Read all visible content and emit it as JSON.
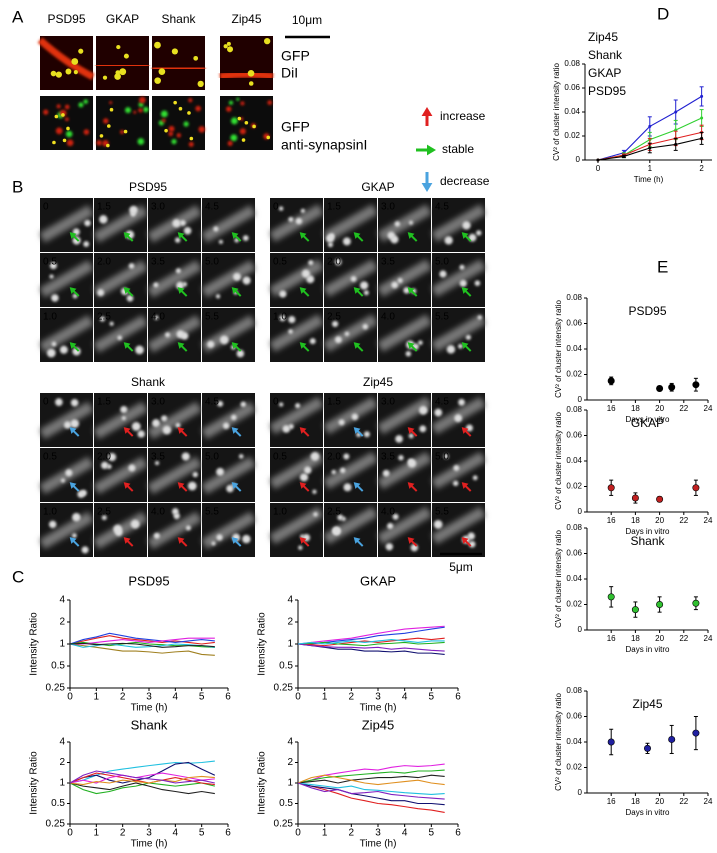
{
  "labels": [
    "A",
    "B",
    "C",
    "D",
    "E"
  ],
  "panel_a": {
    "column_labels": [
      "PSD95",
      "GKAP",
      "Shank",
      "Zip45"
    ],
    "scale_bar": "10μm",
    "row1_labels": [
      "GFP",
      "DiI"
    ],
    "row2_labels": [
      "GFP",
      "anti-synapsinI"
    ],
    "legend": [
      "increase",
      "stable",
      "decrease"
    ]
  },
  "panel_b": {
    "titles": [
      "PSD95",
      "GKAP",
      "Shank",
      "Zip45"
    ],
    "times": [
      "0",
      "1.5",
      "3.0",
      "4.5",
      "0.5",
      "2.0",
      "3.5",
      "5.0",
      "1.0",
      "2.5",
      "4.0",
      "5.5"
    ],
    "scale_bar": "5μm"
  },
  "chart_data": [
    {
      "type": "line",
      "title": "PSD95",
      "xlabel": "Time (h)",
      "ylabel": "Intensity Ratio",
      "log_y": true,
      "x": [
        0,
        0.5,
        1,
        1.5,
        2,
        2.5,
        3,
        3.5,
        4,
        4.5,
        5,
        5.5
      ],
      "xlim": [
        0,
        6
      ],
      "xticks": [
        0,
        1,
        2,
        3,
        4,
        5,
        6
      ],
      "ylim": [
        0.25,
        4
      ],
      "yticks": [
        0.25,
        0.5,
        1,
        2,
        4
      ],
      "series": [
        {
          "color": "#e02020",
          "values": [
            1,
            1.1,
            1.2,
            1.3,
            1.2,
            1.15,
            1.1,
            1.05,
            1.1,
            1.05,
            1.0,
            1.05
          ]
        },
        {
          "color": "#2040e0",
          "values": [
            1,
            1.15,
            1.25,
            1.4,
            1.3,
            1.2,
            1.15,
            1.1,
            1.05,
            1.1,
            1.15,
            1.1
          ]
        },
        {
          "color": "#a08020",
          "values": [
            1,
            0.95,
            0.9,
            0.85,
            0.8,
            0.8,
            0.78,
            0.75,
            0.78,
            0.8,
            0.72,
            0.7
          ]
        },
        {
          "color": "#20b020",
          "values": [
            1,
            1.05,
            1.0,
            0.95,
            1.0,
            1.05,
            1.0,
            0.98,
            0.95,
            0.95,
            0.92,
            0.9
          ]
        },
        {
          "color": "#e020e0",
          "values": [
            1,
            1.0,
            1.05,
            1.1,
            1.15,
            1.1,
            1.05,
            1.1,
            1.15,
            1.2,
            1.2,
            1.2
          ]
        },
        {
          "color": "#20c0e0",
          "values": [
            1,
            0.9,
            0.95,
            1.0,
            0.95,
            0.9,
            0.92,
            0.95,
            1.0,
            0.98,
            0.95,
            0.9
          ]
        },
        {
          "color": "#202020",
          "values": [
            1,
            1.02,
            0.98,
            1.0,
            1.02,
            1.0,
            0.95,
            0.9,
            0.92,
            0.95,
            0.95,
            0.92
          ]
        }
      ]
    },
    {
      "type": "line",
      "title": "GKAP",
      "xlabel": "Time (h)",
      "ylabel": "Intensity Ratio",
      "log_y": true,
      "x": [
        0,
        0.5,
        1,
        1.5,
        2,
        2.5,
        3,
        3.5,
        4,
        4.5,
        5,
        5.5
      ],
      "xlim": [
        0,
        6
      ],
      "xticks": [
        0,
        1,
        2,
        3,
        4,
        5,
        6
      ],
      "ylim": [
        0.25,
        4
      ],
      "yticks": [
        0.25,
        0.5,
        1,
        2,
        4
      ],
      "series": [
        {
          "color": "#e020e0",
          "values": [
            1,
            1.05,
            1.1,
            1.15,
            1.2,
            1.3,
            1.4,
            1.5,
            1.6,
            1.65,
            1.7,
            1.75
          ]
        },
        {
          "color": "#2040e0",
          "values": [
            1,
            1.0,
            1.05,
            1.1,
            1.15,
            1.2,
            1.3,
            1.35,
            1.4,
            1.5,
            1.6,
            1.7
          ]
        },
        {
          "color": "#101070",
          "values": [
            1,
            0.95,
            0.9,
            0.85,
            0.85,
            0.8,
            0.8,
            0.78,
            0.8,
            0.75,
            0.75,
            0.72
          ]
        },
        {
          "color": "#e02020",
          "values": [
            1,
            0.98,
            0.95,
            1.0,
            1.05,
            1.1,
            1.05,
            1.1,
            1.15,
            1.2,
            1.15,
            1.2
          ]
        },
        {
          "color": "#20b020",
          "values": [
            1,
            1.02,
            1.05,
            1.0,
            0.98,
            0.95,
            1.0,
            1.02,
            1.05,
            1.0,
            1.02,
            1.05
          ]
        },
        {
          "color": "#8020c0",
          "values": [
            1,
            0.95,
            0.92,
            0.9,
            0.9,
            0.88,
            0.9,
            0.85,
            0.88,
            0.85,
            0.82,
            0.8
          ]
        },
        {
          "color": "#20c0e0",
          "values": [
            1,
            1.05,
            1.0,
            1.05,
            1.1,
            1.05,
            1.1,
            1.15,
            1.1,
            1.05,
            1.1,
            1.1
          ]
        }
      ]
    },
    {
      "type": "line",
      "title": "Shank",
      "xlabel": "Time (h)",
      "ylabel": "Intensity Ratio",
      "log_y": true,
      "x": [
        0,
        0.5,
        1,
        1.5,
        2,
        2.5,
        3,
        3.5,
        4,
        4.5,
        5,
        5.5
      ],
      "xlim": [
        0,
        6
      ],
      "xticks": [
        0,
        1,
        2,
        3,
        4,
        5,
        6
      ],
      "ylim": [
        0.25,
        4
      ],
      "yticks": [
        0.25,
        0.5,
        1,
        2,
        4
      ],
      "series": [
        {
          "color": "#20c0e0",
          "values": [
            1,
            1.1,
            1.3,
            1.5,
            1.6,
            1.7,
            1.8,
            1.9,
            2.0,
            1.95,
            2.0,
            2.1
          ]
        },
        {
          "color": "#101070",
          "values": [
            1,
            1.2,
            1.3,
            1.1,
            1.0,
            1.1,
            1.2,
            1.5,
            1.9,
            2.0,
            1.6,
            1.3
          ]
        },
        {
          "color": "#20b020",
          "values": [
            1,
            0.8,
            0.7,
            0.75,
            0.85,
            0.9,
            1.0,
            0.95,
            0.9,
            0.95,
            1.0,
            0.9
          ]
        },
        {
          "color": "#e02020",
          "values": [
            1,
            1.2,
            1.4,
            1.3,
            1.2,
            1.1,
            1.0,
            1.1,
            1.2,
            1.1,
            1.0,
            0.95
          ]
        },
        {
          "color": "#202020",
          "values": [
            1,
            0.9,
            0.85,
            0.8,
            0.9,
            1.0,
            0.9,
            0.8,
            0.75,
            0.7,
            0.75,
            0.7
          ]
        },
        {
          "color": "#e020e0",
          "values": [
            1,
            1.1,
            1.0,
            1.2,
            1.3,
            1.2,
            1.3,
            1.4,
            1.3,
            1.2,
            1.1,
            1.15
          ]
        },
        {
          "color": "#e09020",
          "values": [
            1,
            0.95,
            1.05,
            1.0,
            1.1,
            1.05,
            1.0,
            1.1,
            1.05,
            1.2,
            1.25,
            1.2
          ]
        },
        {
          "color": "#8020c0",
          "values": [
            1,
            1.3,
            1.5,
            1.4,
            1.3,
            1.2,
            1.15,
            1.1,
            1.0,
            1.05,
            1.1,
            1.0
          ]
        }
      ]
    },
    {
      "type": "line",
      "title": "Zip45",
      "xlabel": "Time (h)",
      "ylabel": "Intensity Ratio",
      "log_y": true,
      "x": [
        0,
        0.5,
        1,
        1.5,
        2,
        2.5,
        3,
        3.5,
        4,
        4.5,
        5,
        5.5
      ],
      "xlim": [
        0,
        6
      ],
      "xticks": [
        0,
        1,
        2,
        3,
        4,
        5,
        6
      ],
      "ylim": [
        0.25,
        4
      ],
      "yticks": [
        0.25,
        0.5,
        1,
        2,
        4
      ],
      "series": [
        {
          "color": "#e020e0",
          "values": [
            1,
            1.1,
            1.3,
            1.4,
            1.5,
            1.6,
            1.55,
            1.7,
            1.8,
            1.75,
            1.8,
            1.9
          ]
        },
        {
          "color": "#e02020",
          "values": [
            1,
            0.9,
            0.8,
            0.7,
            0.6,
            0.55,
            0.5,
            0.48,
            0.45,
            0.42,
            0.4,
            0.37
          ]
        },
        {
          "color": "#101070",
          "values": [
            1,
            0.9,
            0.85,
            0.8,
            0.7,
            0.65,
            0.6,
            0.55,
            0.55,
            0.5,
            0.5,
            0.48
          ]
        },
        {
          "color": "#20b020",
          "values": [
            1,
            1.1,
            1.2,
            1.25,
            1.3,
            1.35,
            1.4,
            1.45,
            1.4,
            1.5,
            1.5,
            1.55
          ]
        },
        {
          "color": "#20c0e0",
          "values": [
            1,
            0.95,
            0.9,
            0.85,
            0.9,
            0.8,
            0.78,
            0.75,
            0.72,
            0.7,
            0.68,
            0.7
          ]
        },
        {
          "color": "#202020",
          "values": [
            1,
            1.05,
            1.1,
            1.0,
            1.1,
            1.15,
            1.2,
            1.2,
            1.25,
            1.2,
            1.3,
            1.25
          ]
        },
        {
          "color": "#e09020",
          "values": [
            1,
            1.2,
            1.3,
            1.2,
            1.1,
            1.0,
            0.95,
            1.0,
            1.05,
            1.1,
            1.0,
            0.95
          ]
        },
        {
          "color": "#8020c0",
          "values": [
            1,
            0.85,
            0.75,
            0.8,
            0.7,
            0.72,
            0.75,
            0.68,
            0.65,
            0.62,
            0.6,
            0.58
          ]
        }
      ]
    },
    {
      "type": "line",
      "xlabel": "Time (h)",
      "ylabel": "CV² of cluster intensity ratio",
      "x": [
        0,
        0.5,
        1,
        1.5,
        2
      ],
      "xlim": [
        -0.25,
        2.2
      ],
      "xticks": [
        0,
        1,
        2
      ],
      "ylim": [
        0,
        0.08
      ],
      "yticks": [
        0,
        0.02,
        0.04,
        0.06,
        0.08
      ],
      "series": [
        {
          "name": "Zip45",
          "color": "#2020d0",
          "values": [
            0,
            0.006,
            0.028,
            0.04,
            0.053
          ],
          "errors": [
            0,
            0.002,
            0.008,
            0.01,
            0.008
          ]
        },
        {
          "name": "Shank",
          "color": "#30d030",
          "values": [
            0,
            0.004,
            0.017,
            0.025,
            0.035
          ],
          "errors": [
            0,
            0.002,
            0.006,
            0.008,
            0.007
          ]
        },
        {
          "name": "GKAP",
          "color": "#e02020",
          "values": [
            0,
            0.004,
            0.013,
            0.018,
            0.023
          ],
          "errors": [
            0,
            0.001,
            0.005,
            0.006,
            0.006
          ]
        },
        {
          "name": "PSD95",
          "color": "#000000",
          "values": [
            0,
            0.003,
            0.01,
            0.013,
            0.018
          ],
          "errors": [
            0,
            0.001,
            0.004,
            0.005,
            0.005
          ]
        }
      ]
    },
    {
      "type": "scatter",
      "title": "PSD95",
      "xlabel": "Days in vitro",
      "ylabel": "CV² of cluster intensity ratio",
      "x": [
        16,
        20,
        21,
        23
      ],
      "values": [
        0.015,
        0.009,
        0.01,
        0.012
      ],
      "errors": [
        0.003,
        0.002,
        0.003,
        0.005
      ],
      "color": "#000000",
      "xlim": [
        14,
        24
      ],
      "xticks": [
        16,
        18,
        20,
        22,
        24
      ],
      "ylim": [
        0,
        0.08
      ],
      "yticks": [
        0,
        0.02,
        0.04,
        0.06,
        0.08
      ]
    },
    {
      "type": "scatter",
      "title": "GKAP",
      "xlabel": "Days in vitro",
      "ylabel": "CV² of cluster intensity ratio",
      "x": [
        16,
        18,
        20,
        23
      ],
      "values": [
        0.019,
        0.011,
        0.01,
        0.019
      ],
      "errors": [
        0.006,
        0.004,
        0.002,
        0.006
      ],
      "color": "#c02020",
      "xlim": [
        14,
        24
      ],
      "xticks": [
        16,
        18,
        20,
        22,
        24
      ],
      "ylim": [
        0,
        0.08
      ],
      "yticks": [
        0,
        0.02,
        0.04,
        0.06,
        0.08
      ]
    },
    {
      "type": "scatter",
      "title": "Shank",
      "xlabel": "Days in vitro",
      "ylabel": "CV² of cluster intensity ratio",
      "x": [
        16,
        18,
        20,
        23
      ],
      "values": [
        0.026,
        0.016,
        0.02,
        0.021
      ],
      "errors": [
        0.008,
        0.006,
        0.006,
        0.005
      ],
      "color": "#30c030",
      "xlim": [
        14,
        24
      ],
      "xticks": [
        16,
        18,
        20,
        22,
        24
      ],
      "ylim": [
        0,
        0.08
      ],
      "yticks": [
        0,
        0.02,
        0.04,
        0.06,
        0.08
      ]
    },
    {
      "type": "scatter",
      "title": "Zip45",
      "xlabel": "Days in vitro",
      "ylabel": "CV² of cluster intensity ratio",
      "x": [
        16,
        19,
        21,
        23
      ],
      "values": [
        0.04,
        0.035,
        0.042,
        0.047
      ],
      "errors": [
        0.01,
        0.004,
        0.011,
        0.013
      ],
      "color": "#2020a0",
      "xlim": [
        14,
        24
      ],
      "xticks": [
        16,
        18,
        20,
        22,
        24
      ],
      "ylim": [
        0,
        0.08
      ],
      "yticks": [
        0,
        0.02,
        0.04,
        0.06,
        0.08
      ]
    }
  ]
}
